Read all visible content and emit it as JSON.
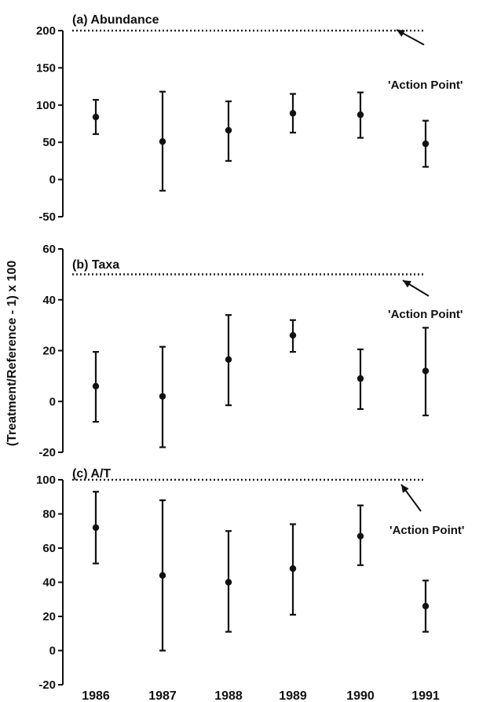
{
  "figure": {
    "ylabel": "(Treatment/Reference - 1) x 100",
    "years": [
      "1986",
      "1987",
      "1988",
      "1989",
      "1990",
      "1991"
    ]
  },
  "chart_data": [
    {
      "type": "scatter",
      "title": "(a) Abundance",
      "ylim": [
        -50,
        200
      ],
      "yticks": [
        -50,
        0,
        50,
        100,
        150,
        200
      ],
      "x": [
        "1986",
        "1987",
        "1988",
        "1989",
        "1990",
        "1991"
      ],
      "series": [
        {
          "y": [
            84,
            51,
            66,
            89,
            87,
            48
          ],
          "lower": [
            61,
            -15,
            25,
            63,
            56,
            17
          ],
          "upper": [
            107,
            118,
            105,
            115,
            117,
            79
          ]
        }
      ],
      "reference_line": {
        "y": 200,
        "label": "'Action Point'"
      }
    },
    {
      "type": "scatter",
      "title": "(b) Taxa",
      "ylim": [
        -20,
        60
      ],
      "yticks": [
        -20,
        0,
        20,
        40,
        60
      ],
      "x": [
        "1986",
        "1987",
        "1988",
        "1989",
        "1990",
        "1991"
      ],
      "series": [
        {
          "y": [
            6,
            2,
            16.5,
            26,
            9,
            12
          ],
          "lower": [
            -8,
            -18,
            -1.5,
            19.5,
            -3,
            -5.5
          ],
          "upper": [
            19.5,
            21.5,
            34,
            32,
            20.5,
            29
          ]
        }
      ],
      "reference_line": {
        "y": 50,
        "label": "'Action Point'"
      }
    },
    {
      "type": "scatter",
      "title": "(c) A/T",
      "ylim": [
        -20,
        100
      ],
      "yticks": [
        -20,
        0,
        20,
        40,
        60,
        80,
        100
      ],
      "x": [
        "1986",
        "1987",
        "1988",
        "1989",
        "1990",
        "1991"
      ],
      "series": [
        {
          "y": [
            72,
            44,
            40,
            48,
            67,
            26
          ],
          "lower": [
            51,
            0,
            11,
            21,
            50,
            11
          ],
          "upper": [
            93,
            88,
            70,
            74,
            85,
            41
          ]
        }
      ],
      "reference_line": {
        "y": 100,
        "label": "'Action Point'"
      }
    }
  ]
}
